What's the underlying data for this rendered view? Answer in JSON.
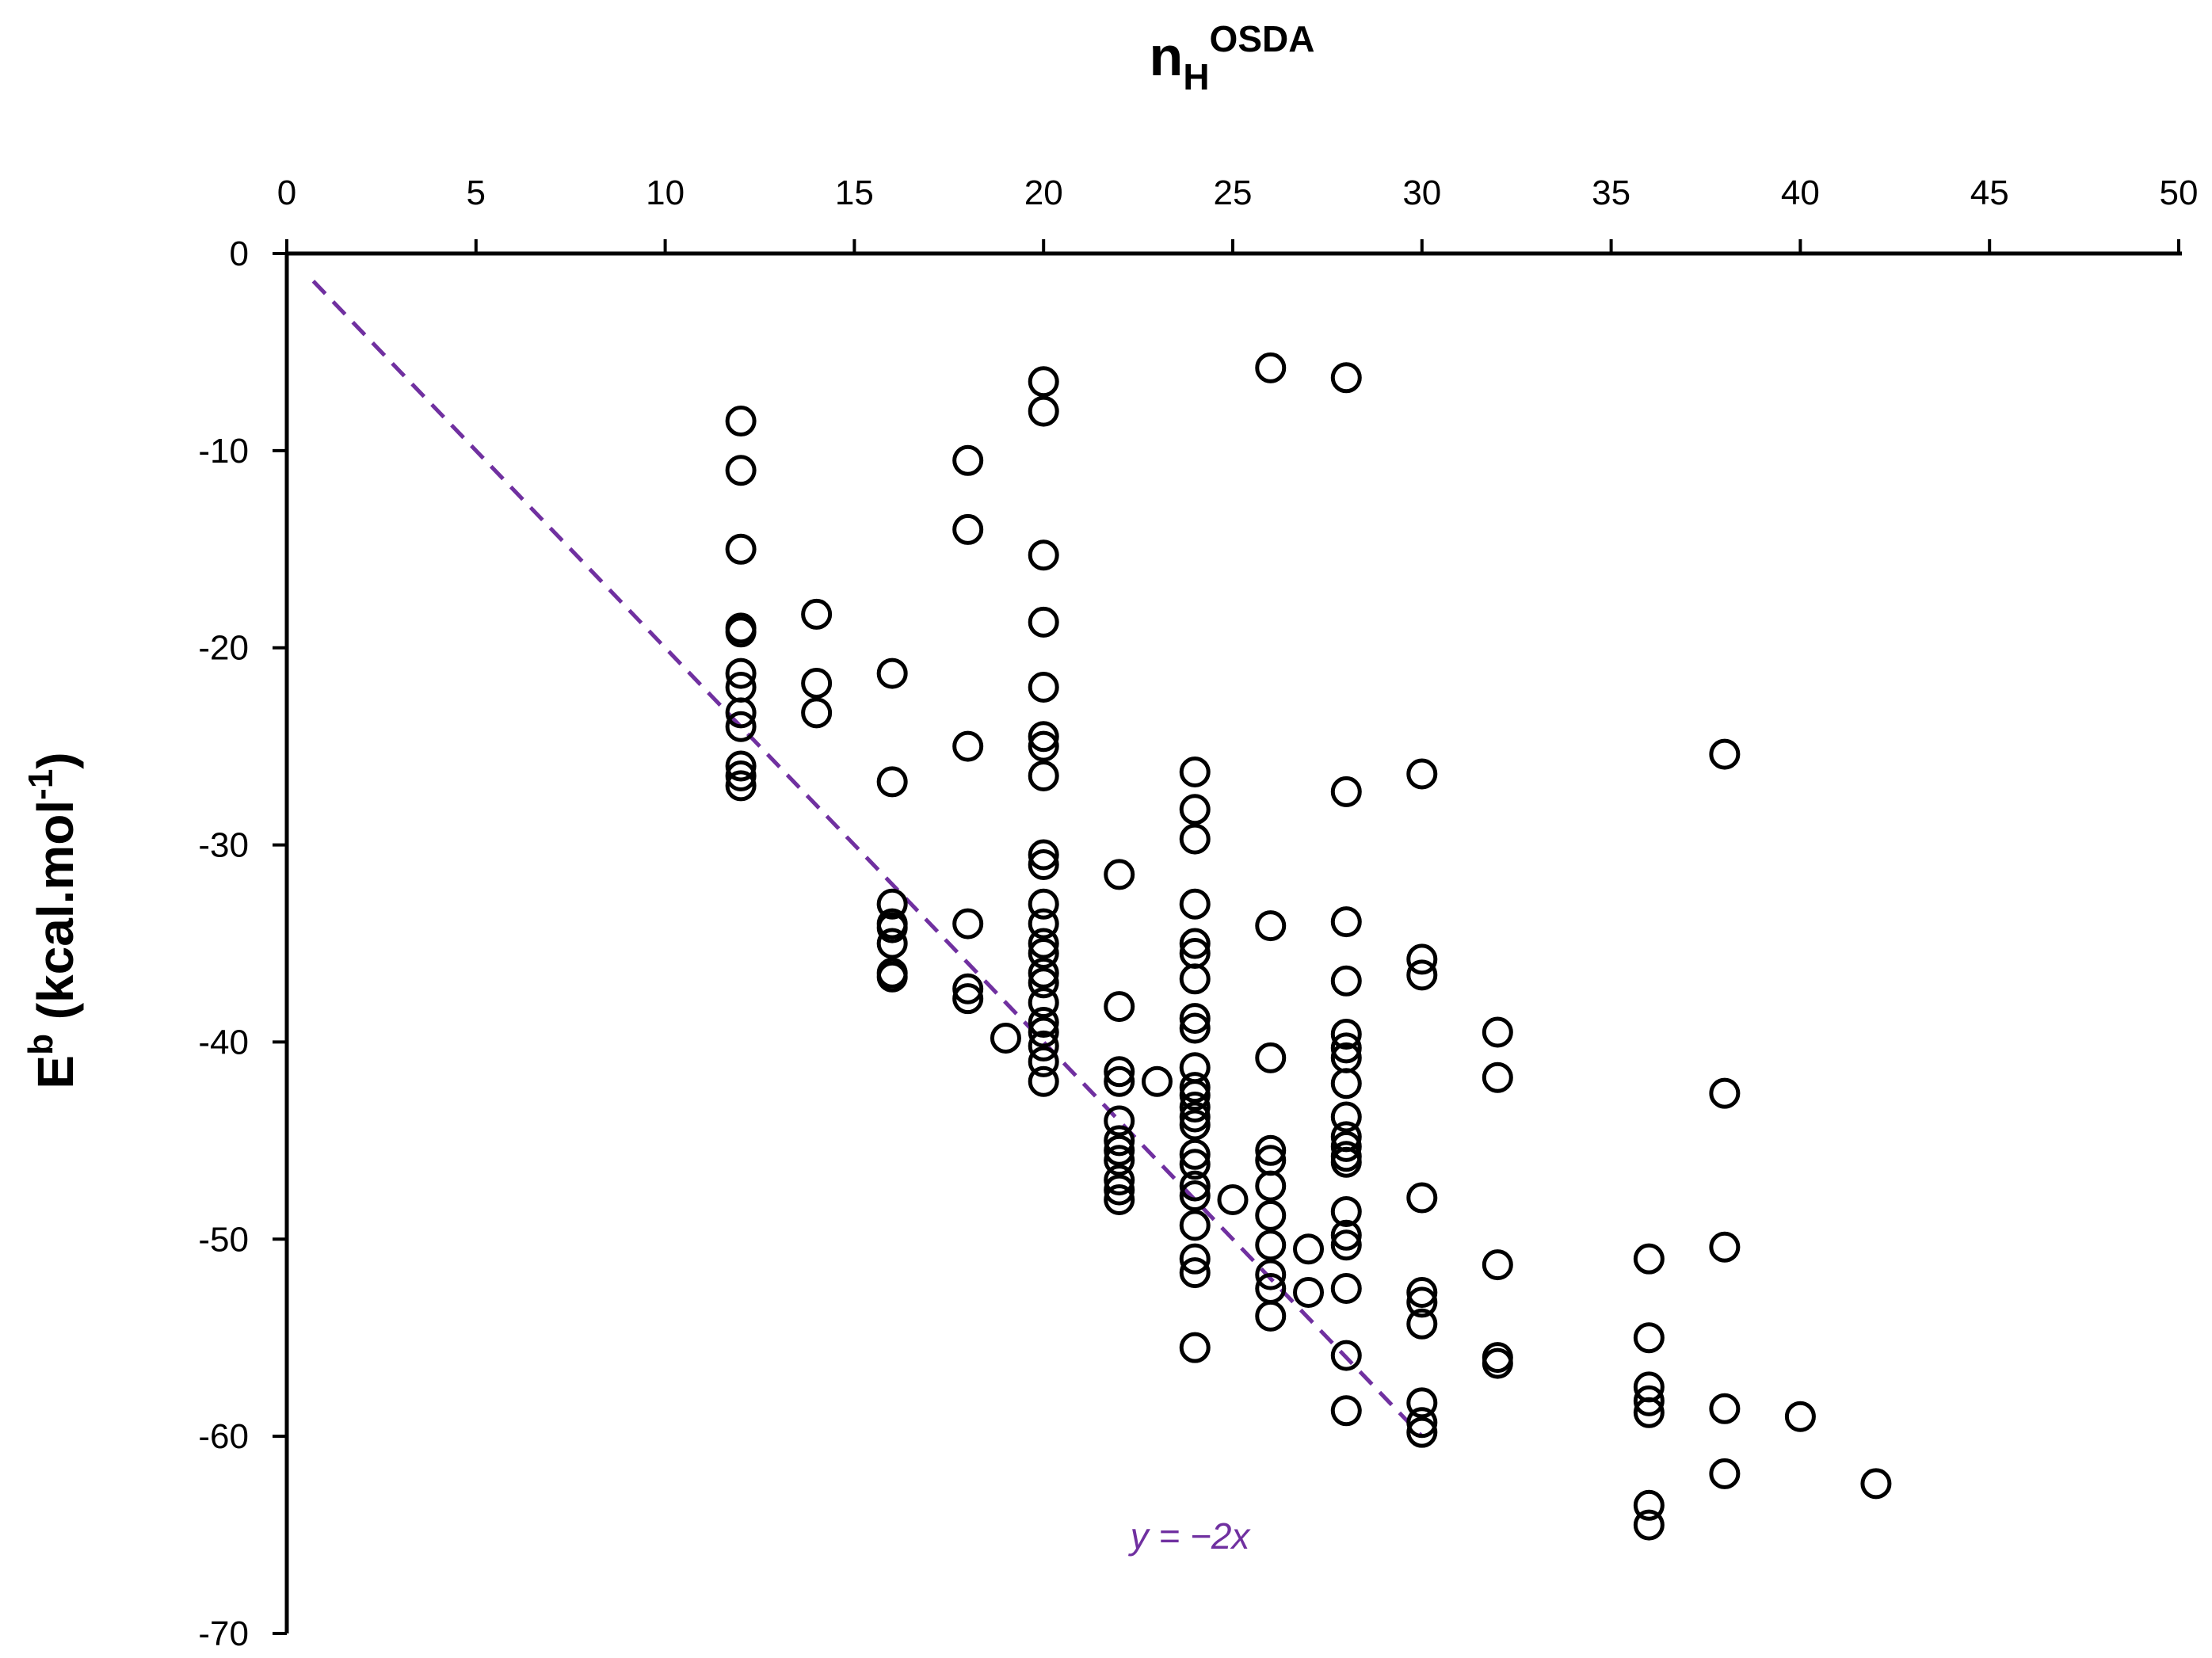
{
  "chart_data": {
    "type": "scatter",
    "title": "",
    "xlabel": {
      "main": "n",
      "sub": "H",
      "sup": "OSDA"
    },
    "ylabel": {
      "main": "E",
      "sup_b": "b",
      "unit_pre": " (kcal.mol",
      "unit_sup": "-1",
      "unit_post": ")"
    },
    "xlim": [
      0,
      50
    ],
    "ylim": [
      -70,
      0
    ],
    "x_axis_position": "top",
    "grid": false,
    "xticks": [
      0,
      5,
      10,
      15,
      20,
      25,
      30,
      35,
      40,
      45,
      50
    ],
    "yticks": [
      0,
      -10,
      -20,
      -30,
      -40,
      -50,
      -60,
      -70
    ],
    "series": [
      {
        "name": "OSDA",
        "marker": "open-circle",
        "color": "#000000",
        "points": [
          [
            12,
            -8.5
          ],
          [
            12,
            -11
          ],
          [
            12,
            -15
          ],
          [
            12,
            -19
          ],
          [
            12,
            -19.2
          ],
          [
            12,
            -21.3
          ],
          [
            12,
            -22
          ],
          [
            12,
            -23.3
          ],
          [
            12,
            -24
          ],
          [
            12,
            -26
          ],
          [
            12,
            -26.5
          ],
          [
            12,
            -27
          ],
          [
            14,
            -18.3
          ],
          [
            14,
            -21.8
          ],
          [
            14,
            -23.3
          ],
          [
            16,
            -21.3
          ],
          [
            16,
            -26.8
          ],
          [
            16,
            -33
          ],
          [
            16,
            -34
          ],
          [
            16,
            -34.2
          ],
          [
            16,
            -35
          ],
          [
            16,
            -36.5
          ],
          [
            16,
            -36.7
          ],
          [
            18,
            -10.5
          ],
          [
            18,
            -14
          ],
          [
            18,
            -25
          ],
          [
            18,
            -34
          ],
          [
            18,
            -37.3
          ],
          [
            18,
            -37.8
          ],
          [
            19,
            -39.8
          ],
          [
            20,
            -6.5
          ],
          [
            20,
            -8
          ],
          [
            20,
            -15.3
          ],
          [
            20,
            -18.7
          ],
          [
            20,
            -22
          ],
          [
            20,
            -24.5
          ],
          [
            20,
            -25
          ],
          [
            20,
            -26.5
          ],
          [
            20,
            -30.5
          ],
          [
            20,
            -31
          ],
          [
            20,
            -33
          ],
          [
            20,
            -34
          ],
          [
            20,
            -35
          ],
          [
            20,
            -35.5
          ],
          [
            20,
            -36.5
          ],
          [
            20,
            -37
          ],
          [
            20,
            -38
          ],
          [
            20,
            -39
          ],
          [
            20,
            -39.5
          ],
          [
            20,
            -40.2
          ],
          [
            20,
            -41
          ],
          [
            20,
            -42
          ],
          [
            22,
            -31.5
          ],
          [
            22,
            -38.2
          ],
          [
            22,
            -41.5
          ],
          [
            22,
            -42
          ],
          [
            22,
            -44
          ],
          [
            22,
            -45
          ],
          [
            22,
            -45.5
          ],
          [
            22,
            -46
          ],
          [
            22,
            -47
          ],
          [
            22,
            -47.5
          ],
          [
            22,
            -48
          ],
          [
            23,
            -42
          ],
          [
            24,
            -26.3
          ],
          [
            24,
            -28.2
          ],
          [
            24,
            -29.7
          ],
          [
            24,
            -33
          ],
          [
            24,
            -35
          ],
          [
            24,
            -35.5
          ],
          [
            24,
            -36.8
          ],
          [
            24,
            -38.8
          ],
          [
            24,
            -39.3
          ],
          [
            24,
            -41.3
          ],
          [
            24,
            -42.3
          ],
          [
            24,
            -42.7
          ],
          [
            24,
            -43.3
          ],
          [
            24,
            -43.8
          ],
          [
            24,
            -44.2
          ],
          [
            24,
            -45.7
          ],
          [
            24,
            -46.2
          ],
          [
            24,
            -47.3
          ],
          [
            24,
            -47.8
          ],
          [
            24,
            -49.3
          ],
          [
            24,
            -51
          ],
          [
            24,
            -51.7
          ],
          [
            24,
            -55.5
          ],
          [
            25,
            -48
          ],
          [
            26,
            -5.8
          ],
          [
            26,
            -34.1
          ],
          [
            26,
            -40.8
          ],
          [
            26,
            -45.5
          ],
          [
            26,
            -46
          ],
          [
            26,
            -47.3
          ],
          [
            26,
            -48.8
          ],
          [
            26,
            -50.3
          ],
          [
            26,
            -51.8
          ],
          [
            26,
            -52.5
          ],
          [
            26,
            -53.9
          ],
          [
            27,
            -50.5
          ],
          [
            27,
            -52.7
          ],
          [
            28,
            -6.3
          ],
          [
            28,
            -27.3
          ],
          [
            28,
            -33.9
          ],
          [
            28,
            -36.9
          ],
          [
            28,
            -39.6
          ],
          [
            28,
            -40.3
          ],
          [
            28,
            -40.8
          ],
          [
            28,
            -42.1
          ],
          [
            28,
            -43.8
          ],
          [
            28,
            -44.8
          ],
          [
            28,
            -45.3
          ],
          [
            28,
            -45.8
          ],
          [
            28,
            -46.1
          ],
          [
            28,
            -48.6
          ],
          [
            28,
            -49.8
          ],
          [
            28,
            -50.3
          ],
          [
            28,
            -52.5
          ],
          [
            28,
            -55.9
          ],
          [
            28,
            -58.7
          ],
          [
            30,
            -26.4
          ],
          [
            30,
            -35.8
          ],
          [
            30,
            -36.6
          ],
          [
            30,
            -47.9
          ],
          [
            30,
            -52.7
          ],
          [
            30,
            -53.2
          ],
          [
            30,
            -54.3
          ],
          [
            30,
            -58.3
          ],
          [
            30,
            -59.3
          ],
          [
            30,
            -59.8
          ],
          [
            32,
            -39.5
          ],
          [
            32,
            -41.8
          ],
          [
            32,
            -51.3
          ],
          [
            32,
            -56
          ],
          [
            32,
            -56.3
          ],
          [
            36,
            -51
          ],
          [
            36,
            -55
          ],
          [
            36,
            -57.5
          ],
          [
            36,
            -58.2
          ],
          [
            36,
            -58.8
          ],
          [
            36,
            -63.5
          ],
          [
            36,
            -64.5
          ],
          [
            38,
            -25.4
          ],
          [
            38,
            -42.6
          ],
          [
            38,
            -50.4
          ],
          [
            38,
            -58.6
          ],
          [
            38,
            -61.9
          ],
          [
            40,
            -59
          ],
          [
            42,
            -62.4
          ]
        ]
      }
    ],
    "reference_line": {
      "label": "y = −2x",
      "slope": -2,
      "intercept": 0,
      "x_range": [
        0.7,
        30
      ],
      "color": "#7030a0",
      "style": "dashed"
    }
  }
}
